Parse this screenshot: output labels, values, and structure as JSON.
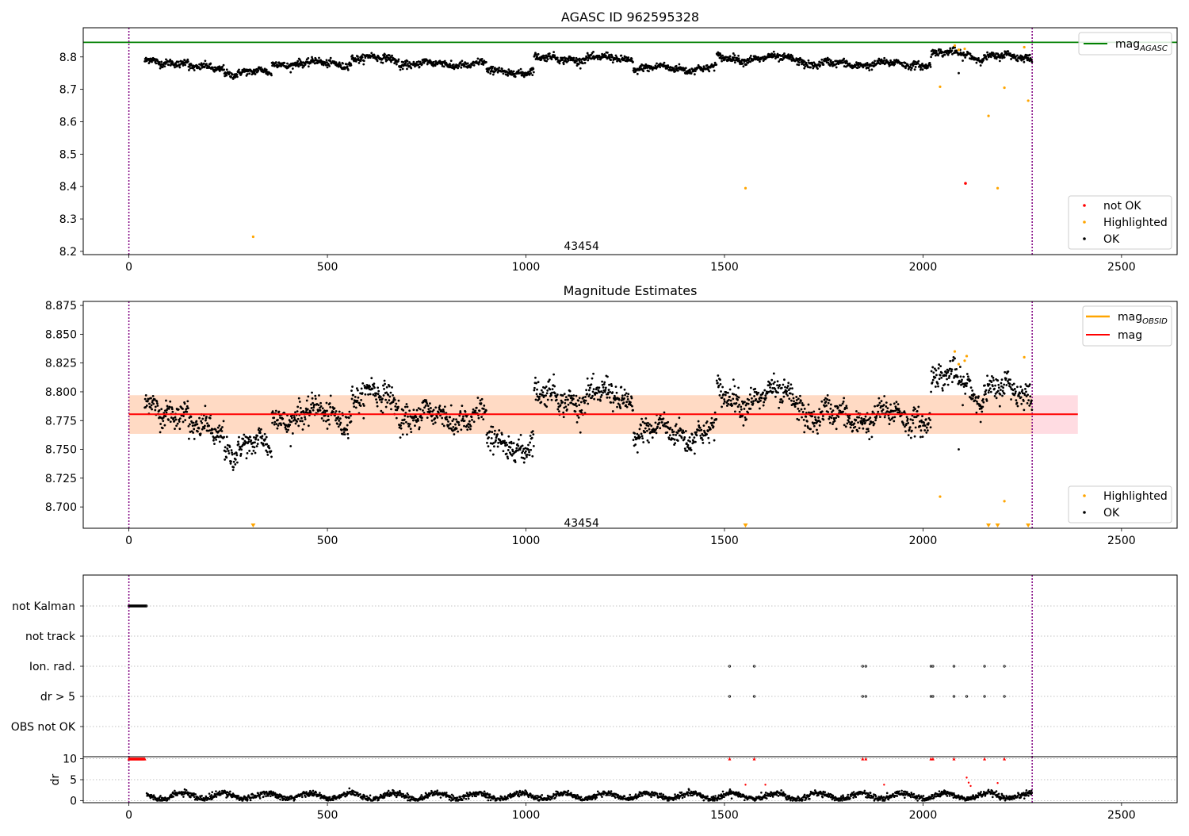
{
  "figure": {
    "colors": {
      "ok": "#000000",
      "highlighted": "#ffa500",
      "not_ok": "#ff0000",
      "mag_agasc": "#008000",
      "mag": "#ff0000",
      "mag_obsid": "#ffa500",
      "obsid_line": "#800080",
      "band_outer": "#ffc0cb",
      "band_inner": "#ffdab9"
    }
  },
  "chart_data": [
    {
      "type": "scatter",
      "title": "AGASC ID 962595328",
      "xlim": [
        -115,
        2640
      ],
      "ylim": [
        8.19,
        8.89
      ],
      "xticks": [
        0,
        500,
        1000,
        1500,
        2000,
        2500
      ],
      "xtick_labels": [
        "0",
        "500",
        "1000",
        "1500",
        "2000",
        "2500"
      ],
      "yticks": [
        8.2,
        8.3,
        8.4,
        8.5,
        8.6,
        8.7,
        8.8
      ],
      "ytick_labels": [
        "8.2",
        "8.3",
        "8.4",
        "8.5",
        "8.6",
        "8.7",
        "8.8"
      ],
      "mag_agasc": 8.845,
      "obsid_boundaries": [
        0,
        2275
      ],
      "obsid_label": {
        "text": "43454",
        "x": 1140,
        "y": 8.21
      },
      "ok_series": {
        "name": "OK",
        "x_range": [
          40,
          2275
        ],
        "segment_means": [
          {
            "x": [
              40,
              150
            ],
            "y": 8.785
          },
          {
            "x": [
              150,
              240
            ],
            "y": 8.765
          },
          {
            "x": [
              240,
              360
            ],
            "y": 8.752
          },
          {
            "x": [
              360,
              560
            ],
            "y": 8.78
          },
          {
            "x": [
              560,
              680
            ],
            "y": 8.795
          },
          {
            "x": [
              680,
              900
            ],
            "y": 8.778
          },
          {
            "x": [
              900,
              1020
            ],
            "y": 8.755
          },
          {
            "x": [
              1020,
              1270
            ],
            "y": 8.795
          },
          {
            "x": [
              1270,
              1480
            ],
            "y": 8.765
          },
          {
            "x": [
              1480,
              1700
            ],
            "y": 8.795
          },
          {
            "x": [
              1700,
              2020
            ],
            "y": 8.778
          },
          {
            "x": [
              2020,
              2120
            ],
            "y": 8.81
          },
          {
            "x": [
              2120,
              2275
            ],
            "y": 8.8
          }
        ],
        "outliers": [
          {
            "x": 2090,
            "y": 8.75
          }
        ]
      },
      "highlighted_series": {
        "name": "Highlighted",
        "points": [
          {
            "x": 313,
            "y": 8.245
          },
          {
            "x": 1553,
            "y": 8.395
          },
          {
            "x": 2043,
            "y": 8.708
          },
          {
            "x": 2080,
            "y": 8.835
          },
          {
            "x": 2090,
            "y": 8.822
          },
          {
            "x": 2105,
            "y": 8.825
          },
          {
            "x": 2165,
            "y": 8.618
          },
          {
            "x": 2188,
            "y": 8.395
          },
          {
            "x": 2205,
            "y": 8.705
          },
          {
            "x": 2255,
            "y": 8.83
          },
          {
            "x": 2265,
            "y": 8.665
          }
        ]
      },
      "not_ok_series": {
        "name": "not OK",
        "points": [
          {
            "x": 2107,
            "y": 8.41
          }
        ]
      },
      "legend_upper": [
        {
          "label": "mag",
          "subscript": "AGASC",
          "kind": "line",
          "color_key": "mag_agasc"
        }
      ],
      "legend_lower": [
        {
          "label": "not OK",
          "kind": "dot",
          "color_key": "not_ok"
        },
        {
          "label": "Highlighted",
          "kind": "dot",
          "color_key": "highlighted"
        },
        {
          "label": "OK",
          "kind": "dot",
          "color_key": "ok"
        }
      ],
      "legend_placement": {
        "upper": "top-right",
        "lower": "bottom-right"
      }
    },
    {
      "type": "scatter",
      "title": "Magnitude Estimates",
      "xlim": [
        -115,
        2640
      ],
      "ylim": [
        8.6815,
        8.8785
      ],
      "xticks": [
        0,
        500,
        1000,
        1500,
        2000,
        2500
      ],
      "xtick_labels": [
        "0",
        "500",
        "1000",
        "1500",
        "2000",
        "2500"
      ],
      "yticks": [
        8.7,
        8.725,
        8.75,
        8.775,
        8.8,
        8.825,
        8.85,
        8.875
      ],
      "ytick_labels": [
        "8.700",
        "8.725",
        "8.750",
        "8.775",
        "8.800",
        "8.825",
        "8.850",
        "8.875"
      ],
      "mag": 8.7805,
      "mag_band_outer": [
        8.7635,
        8.797
      ],
      "mag_band_inner": [
        8.7635,
        8.797
      ],
      "band_x": [
        0,
        2390
      ],
      "obsid_boundaries": [
        0,
        2275
      ],
      "obsid_label": {
        "text": "43454",
        "x": 1140,
        "y": 8.685
      },
      "highlighted_series": {
        "name": "Highlighted",
        "points": [
          {
            "x": 2043,
            "y": 8.709
          },
          {
            "x": 2080,
            "y": 8.835
          },
          {
            "x": 2090,
            "y": 8.824
          },
          {
            "x": 2105,
            "y": 8.827
          },
          {
            "x": 2110,
            "y": 8.831
          },
          {
            "x": 2205,
            "y": 8.705
          },
          {
            "x": 2255,
            "y": 8.83
          }
        ],
        "below_axis_markers": [
          313,
          1553,
          2165,
          2188,
          2265
        ]
      },
      "legend_upper": [
        {
          "label": "mag",
          "subscript": "OBSID",
          "kind": "line",
          "color_key": "mag_obsid"
        },
        {
          "label": "mag",
          "subscript": "",
          "kind": "line",
          "color_key": "mag"
        }
      ],
      "legend_lower": [
        {
          "label": "Highlighted",
          "kind": "dot",
          "color_key": "highlighted"
        },
        {
          "label": "OK",
          "kind": "dot",
          "color_key": "ok"
        }
      ],
      "legend_placement": {
        "upper": "top-right",
        "lower": "bottom-right"
      }
    },
    {
      "type": "scatter",
      "xlim": [
        -115,
        2640
      ],
      "flag_rows": [
        "not Kalman",
        "not track",
        "Ion. rad.",
        "dr > 5",
        "OBS not OK"
      ],
      "flag_points": {
        "not Kalman": {
          "x_range": [
            0,
            45
          ]
        },
        "not track": {
          "x": []
        },
        "Ion. rad.": {
          "x": [
            1513,
            1575,
            1848,
            1856,
            2020,
            2025,
            2078,
            2155,
            2205
          ]
        },
        "dr > 5": {
          "x": [
            1513,
            1575,
            1848,
            1856,
            2020,
            2025,
            2078,
            2110,
            2155,
            2205
          ]
        },
        "OBS not OK": {
          "x": []
        }
      },
      "dr_panel": {
        "ylabel": "dr",
        "ylim": [
          -0.5,
          10.5
        ],
        "yticks": [
          0,
          5,
          10
        ],
        "ytick_labels": [
          "0",
          "5",
          "10"
        ],
        "clipped_at_10_x": [
          0,
          40,
          1513,
          1575,
          1848,
          1856,
          2020,
          2025,
          2078,
          2155,
          2205
        ],
        "red_points": [
          {
            "x": 1553,
            "y": 3.8
          },
          {
            "x": 1603,
            "y": 3.8
          },
          {
            "x": 1902,
            "y": 3.8
          },
          {
            "x": 2110,
            "y": 5.5
          },
          {
            "x": 2115,
            "y": 4.3
          },
          {
            "x": 2120,
            "y": 3.5
          },
          {
            "x": 2188,
            "y": 4.2
          }
        ],
        "ok_typical_range": [
          0,
          2.5
        ]
      },
      "xticks": [
        0,
        500,
        1000,
        1500,
        2000,
        2500
      ],
      "xtick_labels": [
        "0",
        "500",
        "1000",
        "1500",
        "2000",
        "2500"
      ],
      "obsid_boundaries": [
        0,
        2275
      ]
    }
  ]
}
